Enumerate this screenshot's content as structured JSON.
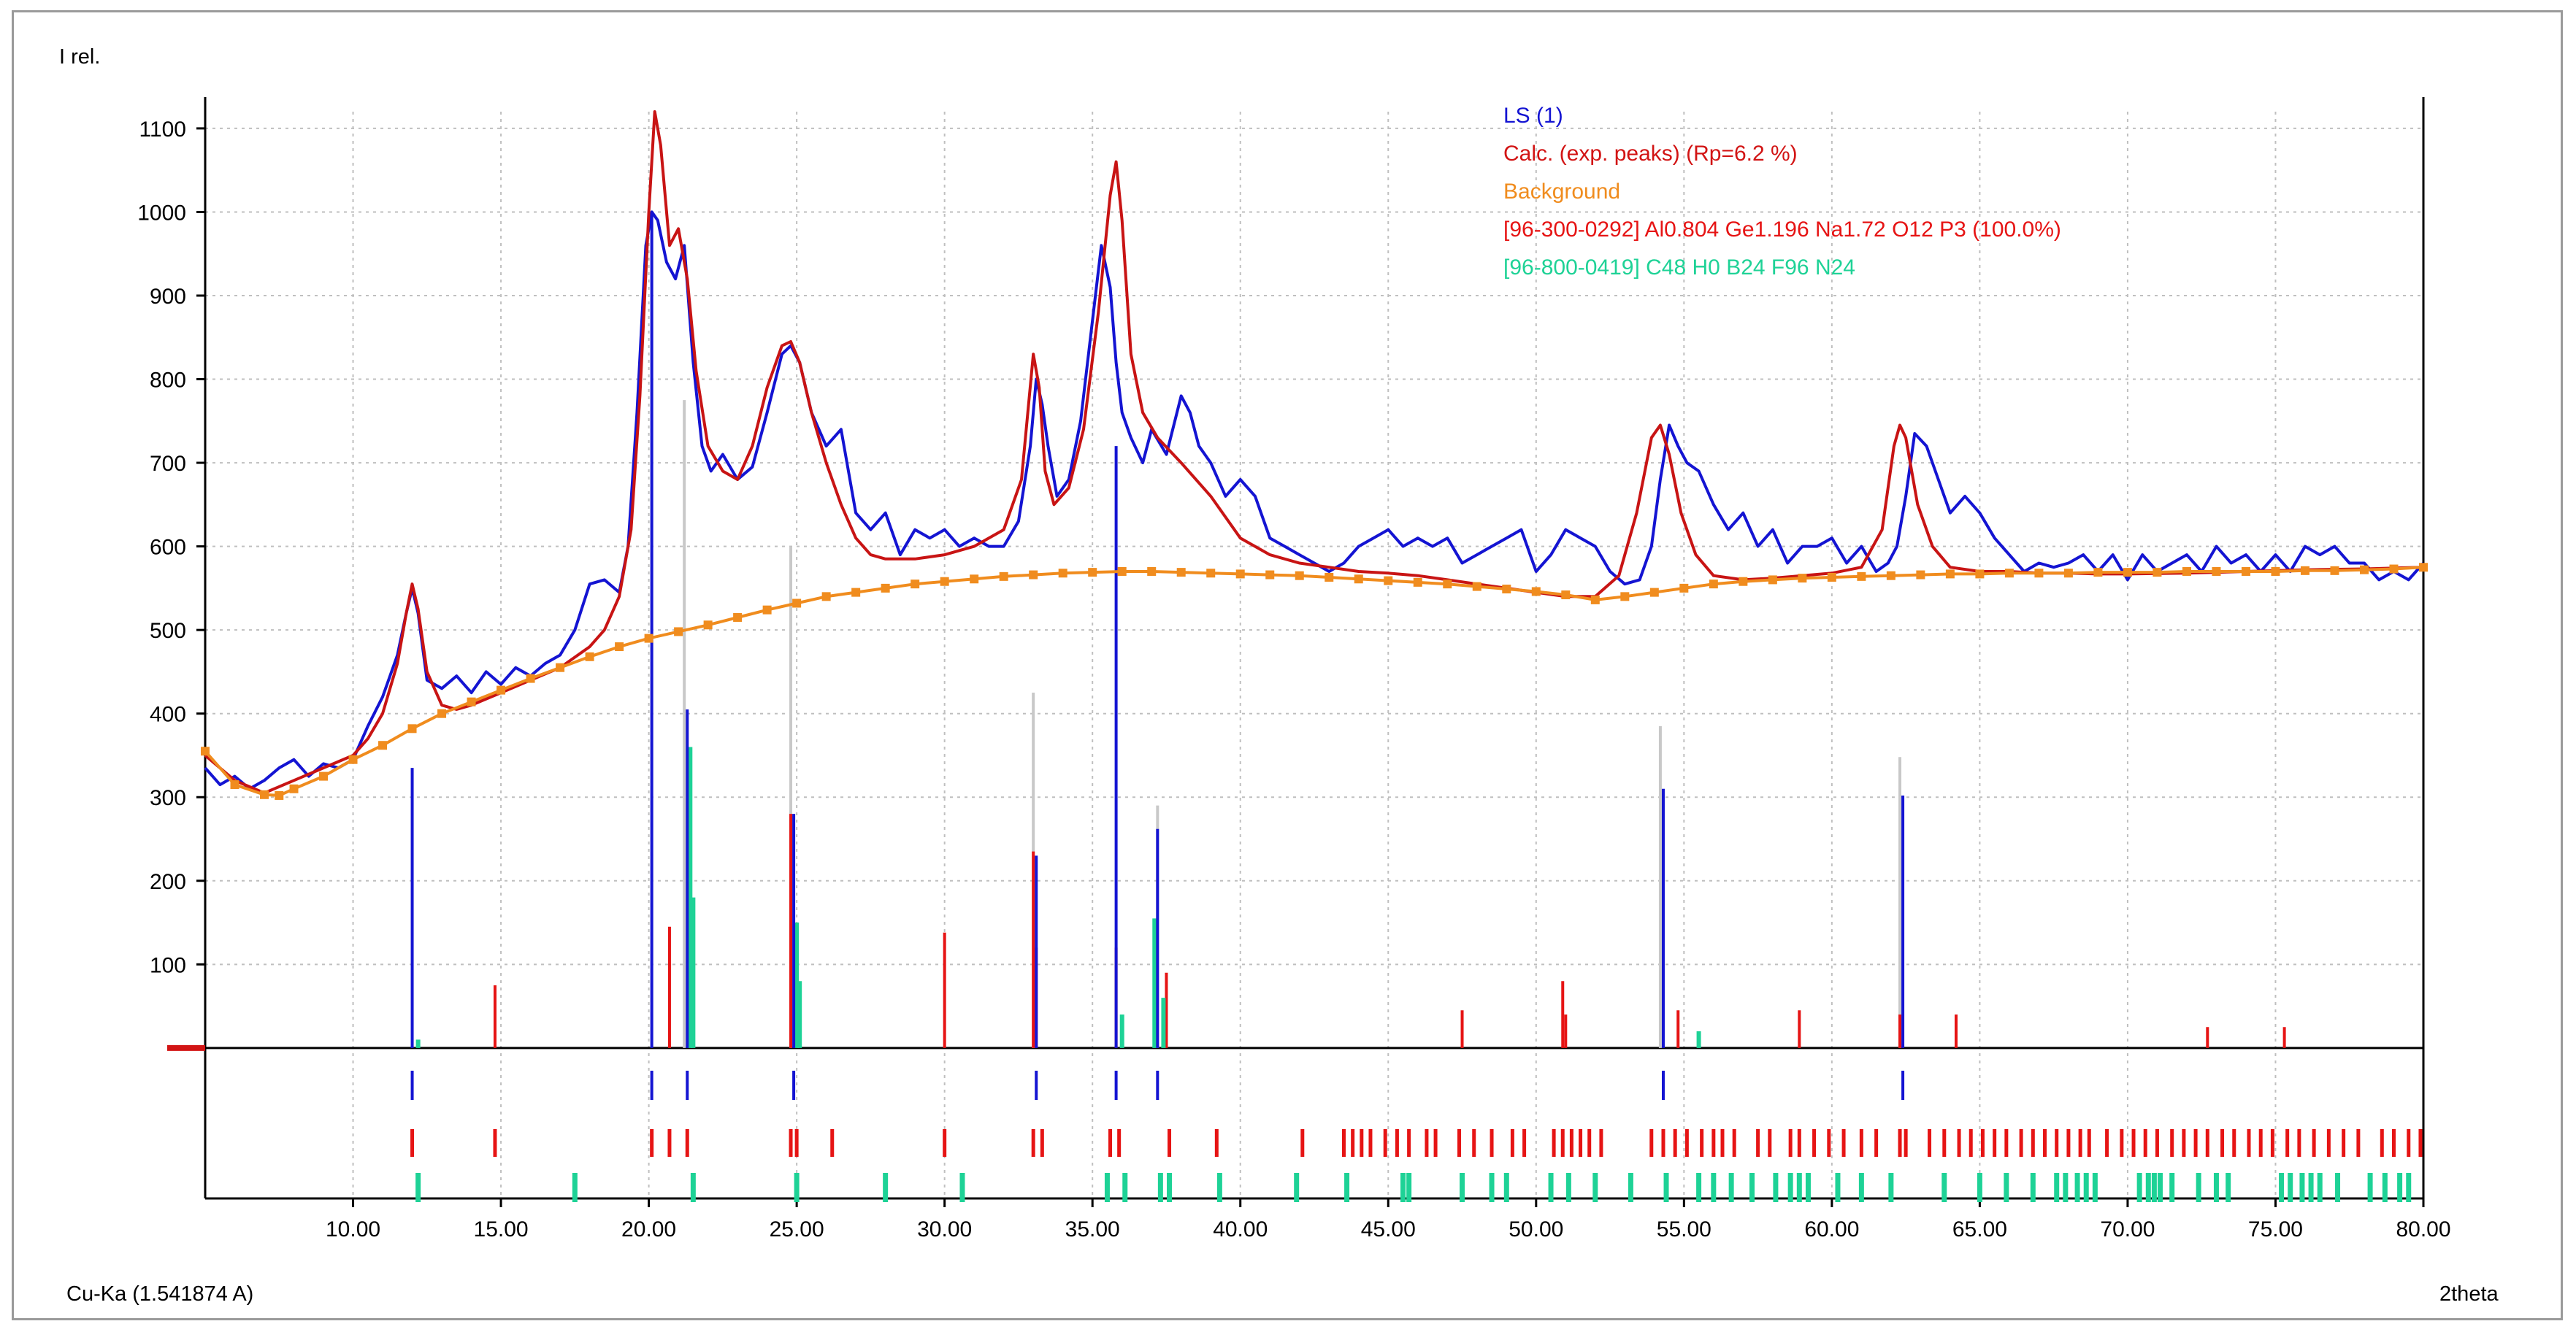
{
  "chart_data": {
    "type": "line",
    "ylabel": "I rel.",
    "xlabel": "2theta",
    "source_label": "Cu-Ka (1.541874 A)",
    "xlim": [
      5,
      80
    ],
    "ylim": [
      -1,
      1120
    ],
    "x_ticks": [
      10,
      15,
      20,
      25,
      30,
      35,
      40,
      45,
      50,
      55,
      60,
      65,
      70,
      75,
      80
    ],
    "x_tick_labels": [
      "10.00",
      "15.00",
      "20.00",
      "25.00",
      "30.00",
      "35.00",
      "40.00",
      "45.00",
      "50.00",
      "55.00",
      "60.00",
      "65.00",
      "70.00",
      "75.00",
      "80.00"
    ],
    "y_ticks": [
      100,
      200,
      300,
      400,
      500,
      600,
      700,
      800,
      900,
      1000,
      1100
    ],
    "y_tick_labels": [
      "100",
      "200",
      "300",
      "400",
      "500",
      "600",
      "700",
      "800",
      "900",
      "1000",
      "1100"
    ],
    "grid": true,
    "legend": [
      {
        "label": "LS (1)",
        "color": "#1414d2"
      },
      {
        "label": "Calc. (exp. peaks) (Rp=6.2 %)",
        "color": "#d21414"
      },
      {
        "label": "Background",
        "color": "#f08c1e"
      },
      {
        "label": "[96-300-0292] Al0.804 Ge1.196 Na1.72 O12 P3  (100.0%)",
        "color": "#e61414"
      },
      {
        "label": "[96-800-0419] C48 H0 B24 F96 N24",
        "color": "#1ed296"
      }
    ],
    "series": [
      {
        "name": "LS (1)",
        "color": "#1414d2",
        "x": [
          5,
          5.5,
          6,
          6.5,
          7,
          7.5,
          8,
          8.5,
          9,
          9.5,
          10,
          10.5,
          11,
          11.5,
          11.8,
          12.0,
          12.2,
          12.5,
          13,
          13.5,
          14,
          14.5,
          15,
          15.5,
          16,
          16.5,
          17,
          17.5,
          18,
          18.5,
          19,
          19.3,
          19.6,
          19.9,
          20.1,
          20.3,
          20.6,
          20.9,
          21.2,
          21.5,
          21.8,
          22.1,
          22.5,
          23,
          23.5,
          24,
          24.5,
          24.8,
          25.1,
          25.5,
          26,
          26.5,
          27,
          27.5,
          28,
          28.5,
          29,
          29.5,
          30,
          30.5,
          31,
          31.5,
          32,
          32.5,
          32.9,
          33.1,
          33.3,
          33.5,
          33.8,
          34.2,
          34.6,
          35,
          35.3,
          35.6,
          35.8,
          36.0,
          36.3,
          36.7,
          37,
          37.5,
          38,
          38.3,
          38.6,
          39,
          39.5,
          40,
          40.5,
          41,
          41.5,
          42,
          42.5,
          43,
          43.5,
          44,
          44.5,
          45,
          45.5,
          46,
          46.5,
          47,
          47.5,
          48,
          48.5,
          49,
          49.5,
          50,
          50.5,
          51,
          51.5,
          52,
          52.5,
          53,
          53.5,
          53.9,
          54.2,
          54.5,
          54.8,
          55.1,
          55.5,
          56,
          56.5,
          57,
          57.5,
          58,
          58.5,
          59,
          59.5,
          60,
          60.5,
          61,
          61.5,
          61.9,
          62.2,
          62.5,
          62.8,
          63.2,
          63.6,
          64,
          64.5,
          65,
          65.5,
          66,
          66.5,
          67,
          67.5,
          68,
          68.5,
          69,
          69.5,
          70,
          70.5,
          71,
          71.5,
          72,
          72.5,
          73,
          73.5,
          74,
          74.5,
          75,
          75.5,
          76,
          76.5,
          77,
          77.5,
          78,
          78.5,
          79,
          79.5,
          80
        ],
        "y": [
          335,
          315,
          325,
          310,
          320,
          335,
          345,
          325,
          340,
          335,
          345,
          385,
          420,
          470,
          520,
          550,
          520,
          440,
          430,
          445,
          425,
          450,
          435,
          455,
          445,
          460,
          470,
          500,
          555,
          560,
          545,
          600,
          760,
          960,
          1000,
          990,
          940,
          920,
          960,
          820,
          720,
          690,
          710,
          680,
          695,
          760,
          830,
          840,
          820,
          760,
          720,
          740,
          640,
          620,
          640,
          590,
          620,
          610,
          620,
          600,
          610,
          600,
          600,
          630,
          720,
          800,
          770,
          720,
          660,
          680,
          750,
          870,
          960,
          910,
          820,
          760,
          730,
          700,
          740,
          710,
          780,
          760,
          720,
          700,
          660,
          680,
          660,
          610,
          600,
          590,
          580,
          570,
          580,
          600,
          610,
          620,
          600,
          610,
          600,
          610,
          580,
          590,
          600,
          610,
          620,
          570,
          590,
          620,
          610,
          600,
          570,
          555,
          560,
          600,
          680,
          745,
          720,
          700,
          690,
          650,
          620,
          640,
          600,
          620,
          580,
          600,
          600,
          610,
          580,
          600,
          570,
          580,
          600,
          660,
          735,
          720,
          680,
          640,
          660,
          640,
          610,
          590,
          570,
          580,
          575,
          580,
          590,
          570,
          590,
          560,
          590,
          570,
          580,
          590,
          570,
          600,
          580,
          590,
          570,
          590,
          570,
          600,
          590,
          600,
          580,
          580,
          560,
          570,
          560,
          580
        ],
        "style": "line"
      },
      {
        "name": "Calc. (exp. peaks) (Rp=6.2 %)",
        "color": "#c81414",
        "x": [
          5,
          6,
          7,
          8,
          9,
          10,
          10.5,
          11,
          11.5,
          11.8,
          12.0,
          12.2,
          12.5,
          13,
          13.5,
          14,
          15,
          16,
          17,
          18,
          18.5,
          19,
          19.4,
          19.7,
          20.0,
          20.2,
          20.4,
          20.7,
          21.0,
          21.3,
          21.6,
          22.0,
          22.5,
          23,
          23.5,
          24,
          24.5,
          24.8,
          25.1,
          25.5,
          26,
          26.5,
          27,
          27.5,
          28,
          29,
          30,
          31,
          32,
          32.6,
          33.0,
          33.2,
          33.4,
          33.7,
          34.2,
          34.7,
          35.2,
          35.6,
          35.8,
          36.0,
          36.3,
          36.7,
          37.2,
          38,
          39,
          40,
          41,
          42,
          43,
          44,
          45,
          46,
          47,
          48,
          49,
          50,
          51,
          52,
          52.8,
          53.4,
          53.9,
          54.2,
          54.5,
          54.9,
          55.4,
          56,
          57,
          58,
          59,
          60,
          61,
          61.7,
          62.1,
          62.3,
          62.5,
          62.9,
          63.4,
          64,
          65,
          66,
          67,
          68,
          69,
          70,
          72,
          74,
          76,
          78,
          80
        ],
        "y": [
          350,
          320,
          305,
          320,
          335,
          350,
          370,
          400,
          460,
          520,
          555,
          525,
          450,
          410,
          405,
          410,
          425,
          440,
          455,
          480,
          500,
          540,
          620,
          780,
          1000,
          1120,
          1080,
          960,
          980,
          920,
          810,
          720,
          690,
          680,
          720,
          790,
          840,
          845,
          820,
          760,
          700,
          650,
          610,
          590,
          585,
          585,
          590,
          600,
          620,
          680,
          830,
          790,
          690,
          650,
          670,
          740,
          880,
          1020,
          1060,
          990,
          830,
          760,
          730,
          700,
          660,
          610,
          590,
          580,
          575,
          570,
          568,
          565,
          560,
          555,
          550,
          545,
          540,
          540,
          565,
          640,
          730,
          745,
          710,
          640,
          590,
          565,
          560,
          562,
          565,
          568,
          575,
          620,
          720,
          745,
          730,
          650,
          600,
          575,
          570,
          570,
          568,
          568,
          567,
          567,
          568,
          570,
          572,
          573,
          575
        ],
        "style": "line"
      },
      {
        "name": "Background",
        "color": "#f08c1e",
        "x": [
          5,
          6,
          7,
          7.5,
          8,
          9,
          10,
          11,
          12,
          13,
          14,
          15,
          16,
          17,
          18,
          19,
          20,
          21,
          22,
          23,
          24,
          25,
          26,
          27,
          28,
          29,
          30,
          31,
          32,
          33,
          34,
          35,
          36,
          37,
          38,
          39,
          40,
          41,
          42,
          43,
          44,
          45,
          46,
          47,
          48,
          49,
          50,
          51,
          52,
          53,
          54,
          55,
          56,
          57,
          58,
          59,
          60,
          61,
          62,
          63,
          64,
          65,
          66,
          67,
          68,
          69,
          70,
          71,
          72,
          73,
          74,
          75,
          76,
          77,
          78,
          79,
          80
        ],
        "y": [
          355,
          315,
          303,
          302,
          310,
          325,
          345,
          362,
          382,
          400,
          414,
          428,
          442,
          455,
          468,
          480,
          490,
          498,
          506,
          515,
          524,
          532,
          540,
          545,
          550,
          555,
          558,
          561,
          564,
          566,
          568,
          569,
          570,
          570,
          569,
          568,
          567,
          566,
          565,
          563,
          561,
          559,
          557,
          555,
          552,
          549,
          546,
          542,
          536,
          540,
          545,
          550,
          555,
          558,
          560,
          562,
          563,
          564,
          565,
          566,
          567,
          567,
          568,
          568,
          568,
          569,
          569,
          569,
          570,
          570,
          570,
          570,
          571,
          571,
          572,
          573,
          575
        ],
        "style": "line-with-square-markers"
      }
    ],
    "sticks": {
      "observed_blue": [
        [
          12.0,
          335
        ],
        [
          20.1,
          1000
        ],
        [
          21.3,
          405
        ],
        [
          24.9,
          280
        ],
        [
          33.1,
          230
        ],
        [
          35.8,
          720
        ],
        [
          37.2,
          262
        ],
        [
          54.3,
          310
        ],
        [
          62.4,
          302
        ]
      ],
      "reference_gray": [
        [
          21.2,
          775
        ],
        [
          24.8,
          600
        ],
        [
          33.0,
          425
        ],
        [
          37.2,
          290
        ],
        [
          54.2,
          385
        ],
        [
          62.3,
          348
        ]
      ],
      "phase1_red": [
        [
          14.8,
          75
        ],
        [
          20.7,
          145
        ],
        [
          24.8,
          280
        ],
        [
          30.0,
          138
        ],
        [
          33.0,
          235
        ],
        [
          33.1,
          120
        ],
        [
          35.8,
          120
        ],
        [
          37.5,
          90
        ],
        [
          47.5,
          45
        ],
        [
          50.9,
          80
        ],
        [
          51.0,
          40
        ],
        [
          54.8,
          45
        ],
        [
          58.9,
          45
        ],
        [
          62.3,
          40
        ],
        [
          64.2,
          40
        ],
        [
          72.7,
          25
        ],
        [
          75.3,
          25
        ]
      ],
      "phase2_green": [
        [
          12.2,
          10
        ],
        [
          21.4,
          360
        ],
        [
          21.5,
          180
        ],
        [
          25.0,
          150
        ],
        [
          25.1,
          80
        ],
        [
          36.0,
          40
        ],
        [
          37.1,
          155
        ],
        [
          37.4,
          60
        ],
        [
          55.5,
          20
        ]
      ]
    },
    "reflection_markers": {
      "phase1_red_2theta": [
        12.0,
        14.8,
        20.1,
        20.7,
        21.3,
        24.8,
        25.0,
        26.2,
        30.0,
        33.0,
        33.3,
        35.6,
        35.9,
        37.6,
        39.2,
        42.1,
        43.5,
        43.8,
        44.1,
        44.4,
        44.9,
        45.3,
        45.7,
        46.3,
        46.6,
        47.4,
        47.9,
        48.5,
        49.2,
        49.6,
        50.6,
        50.9,
        51.2,
        51.5,
        51.8,
        52.2,
        53.9,
        54.3,
        54.7,
        55.1,
        55.6,
        56.0,
        56.3,
        56.7,
        57.5,
        57.9,
        58.6,
        58.9,
        59.4,
        59.9,
        60.4,
        61.0,
        61.5,
        62.3,
        62.5,
        63.3,
        63.8,
        64.3,
        64.7,
        65.1,
        65.5,
        65.9,
        66.4,
        66.8,
        67.2,
        67.6,
        68.0,
        68.4,
        68.7,
        69.3,
        69.8,
        70.2,
        70.6,
        71.0,
        71.5,
        71.9,
        72.3,
        72.7,
        73.2,
        73.6,
        74.1,
        74.5,
        74.9,
        75.4,
        75.8,
        76.3,
        76.8,
        77.3,
        77.8,
        78.6,
        79.0,
        79.5,
        79.9
      ],
      "phase2_green_2theta": [
        12.2,
        17.5,
        21.5,
        25.0,
        28.0,
        30.6,
        35.5,
        36.1,
        37.3,
        37.6,
        39.3,
        41.9,
        43.6,
        45.5,
        45.7,
        47.5,
        48.5,
        49.0,
        50.5,
        51.1,
        52.0,
        53.2,
        54.4,
        55.5,
        56.0,
        56.6,
        57.3,
        58.1,
        58.6,
        58.9,
        59.2,
        60.2,
        61.0,
        62.0,
        63.8,
        65.0,
        65.9,
        66.8,
        67.6,
        67.9,
        68.3,
        68.6,
        68.9,
        70.4,
        70.7,
        70.9,
        71.1,
        71.5,
        72.4,
        73.0,
        73.4,
        75.2,
        75.5,
        75.9,
        76.2,
        76.5,
        77.1,
        78.2,
        78.7,
        79.2,
        79.5
      ]
    }
  }
}
